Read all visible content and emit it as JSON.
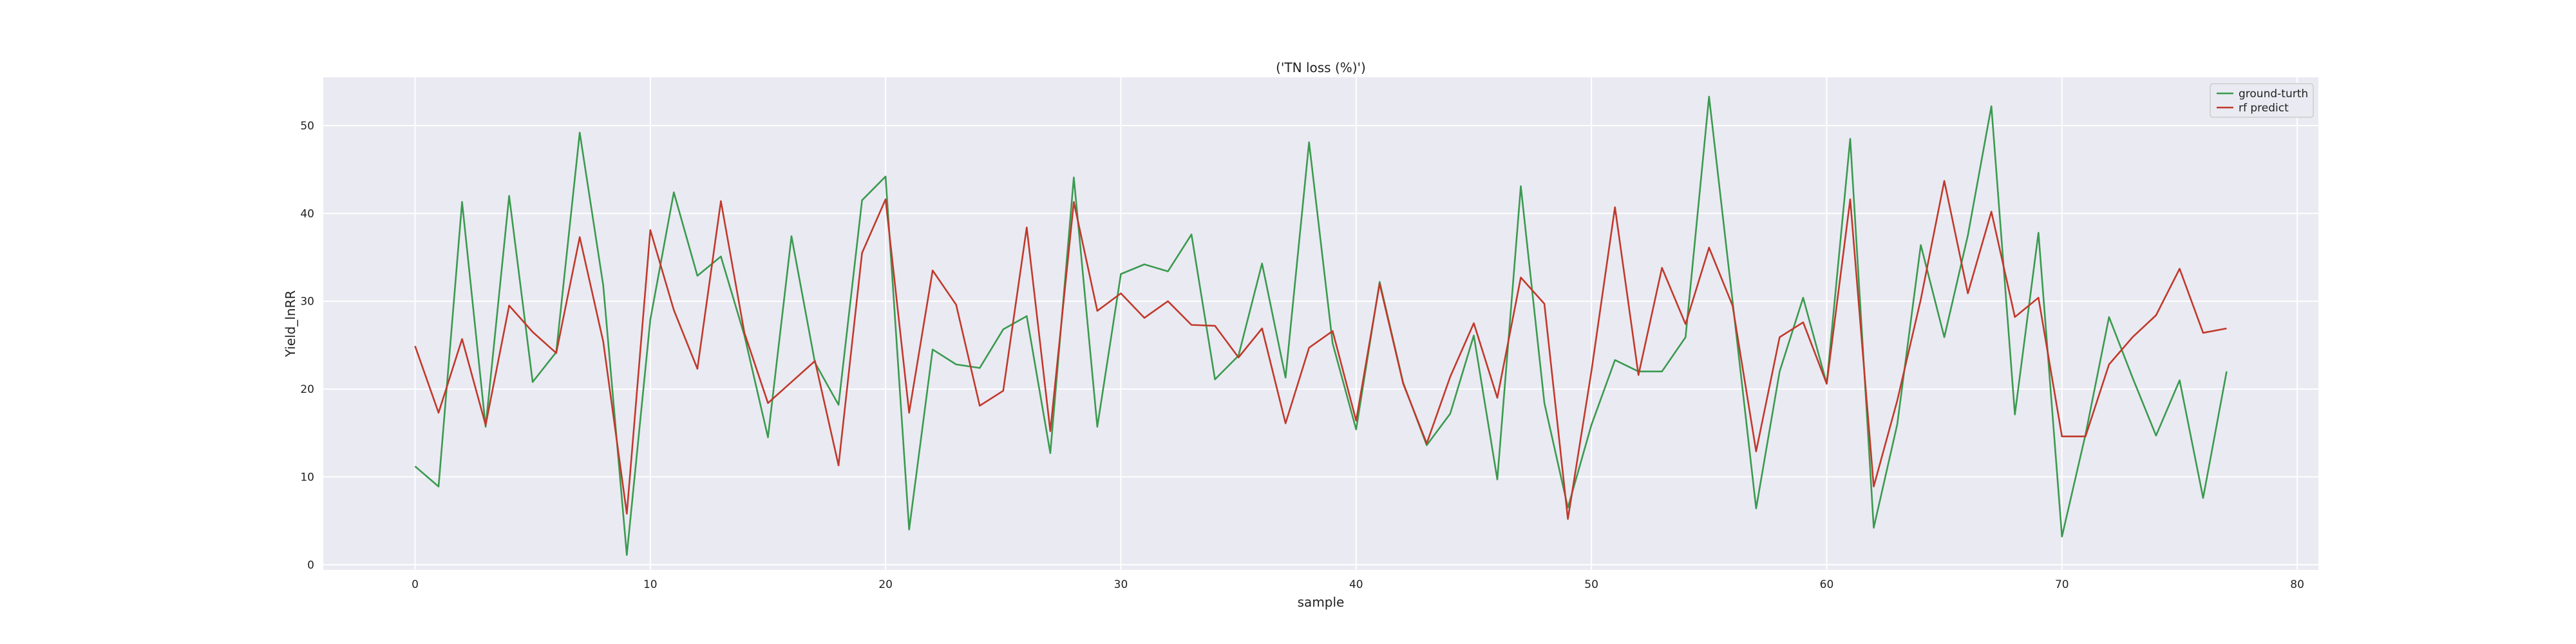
{
  "chart_data": {
    "type": "line",
    "title": "('TN loss (%)')",
    "xlabel": "sample",
    "ylabel": "Yield_lnRR",
    "xlim": [
      -3.9,
      80.9
    ],
    "ylim": [
      -0.6,
      55.5
    ],
    "xticks": [
      0,
      10,
      20,
      30,
      40,
      50,
      60,
      70,
      80
    ],
    "yticks": [
      0,
      10,
      20,
      30,
      40,
      50
    ],
    "grid": true,
    "legend_position": "top-right",
    "series": [
      {
        "name": "ground-turth",
        "color": "#3a9a4f",
        "values": [
          11.2,
          8.9,
          41.3,
          15.7,
          42.0,
          20.8,
          24.2,
          49.2,
          31.8,
          1.1,
          27.9,
          42.4,
          32.9,
          35.1,
          26.1,
          14.5,
          37.4,
          23.0,
          18.2,
          41.5,
          44.2,
          4.0,
          24.5,
          22.8,
          22.4,
          26.8,
          28.3,
          12.7,
          44.1,
          15.7,
          33.1,
          34.2,
          33.4,
          37.6,
          21.1,
          23.8,
          34.3,
          21.3,
          48.1,
          25.2,
          15.4,
          32.2,
          20.7,
          13.6,
          17.2,
          26.1,
          9.7,
          43.1,
          18.4,
          6.5,
          15.9,
          23.3,
          22.0,
          22.0,
          25.9,
          53.3,
          30.0,
          6.4,
          22.0,
          30.4,
          20.6,
          48.5,
          4.2,
          16.0,
          36.4,
          25.9,
          37.5,
          52.2,
          17.1,
          37.8,
          3.2,
          14.8,
          28.2,
          21.3,
          14.7,
          21.0,
          7.6,
          22.0
        ]
      },
      {
        "name": "rf predict",
        "color": "#c0392b",
        "values": [
          24.9,
          17.3,
          25.7,
          15.9,
          29.5,
          26.5,
          24.1,
          37.3,
          25.4,
          5.8,
          38.1,
          29.0,
          22.3,
          41.4,
          26.4,
          18.4,
          20.8,
          23.2,
          11.3,
          35.5,
          41.6,
          17.3,
          33.5,
          29.6,
          18.1,
          19.8,
          38.4,
          15.2,
          41.3,
          28.9,
          30.9,
          28.1,
          30.0,
          27.3,
          27.2,
          23.6,
          26.9,
          16.1,
          24.7,
          26.6,
          16.4,
          32.0,
          20.6,
          13.8,
          21.4,
          27.5,
          19.0,
          32.7,
          29.7,
          5.2,
          22.0,
          40.7,
          21.6,
          33.8,
          27.4,
          36.1,
          29.5,
          12.9,
          25.9,
          27.6,
          20.6,
          41.6,
          8.9,
          18.7,
          30.2,
          43.7,
          30.9,
          40.2,
          28.2,
          30.4,
          14.6,
          14.6,
          22.8,
          25.9,
          28.4,
          33.7,
          26.4,
          26.9
        ]
      }
    ]
  }
}
